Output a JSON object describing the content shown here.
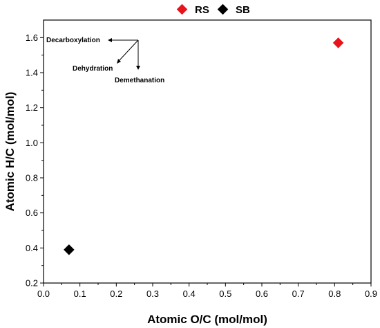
{
  "chart_data": {
    "type": "scatter",
    "title": "",
    "xlabel": "Atomic O/C (mol/mol)",
    "ylabel": "Atomic H/C (mol/mol)",
    "xlim": [
      0.0,
      0.9
    ],
    "ylim": [
      0.2,
      1.7
    ],
    "xticks": [
      "0.0",
      "0.1",
      "0.2",
      "0.3",
      "0.4",
      "0.5",
      "0.6",
      "0.7",
      "0.8",
      "0.9"
    ],
    "yticks": [
      "0.2",
      "0.4",
      "0.6",
      "0.8",
      "1.0",
      "1.2",
      "1.4",
      "1.6"
    ],
    "grid": false,
    "legend_position": "top-center",
    "series": [
      {
        "name": "RS",
        "color": "#e8141c",
        "marker": "diamond",
        "x": [
          0.81
        ],
        "y": [
          1.57
        ]
      },
      {
        "name": "SB",
        "color": "#000000",
        "marker": "diamond",
        "x": [
          0.07
        ],
        "y": [
          0.39
        ]
      }
    ],
    "annotations": [
      "Decarboxylation",
      "Dehydration",
      "Demethanation"
    ]
  }
}
